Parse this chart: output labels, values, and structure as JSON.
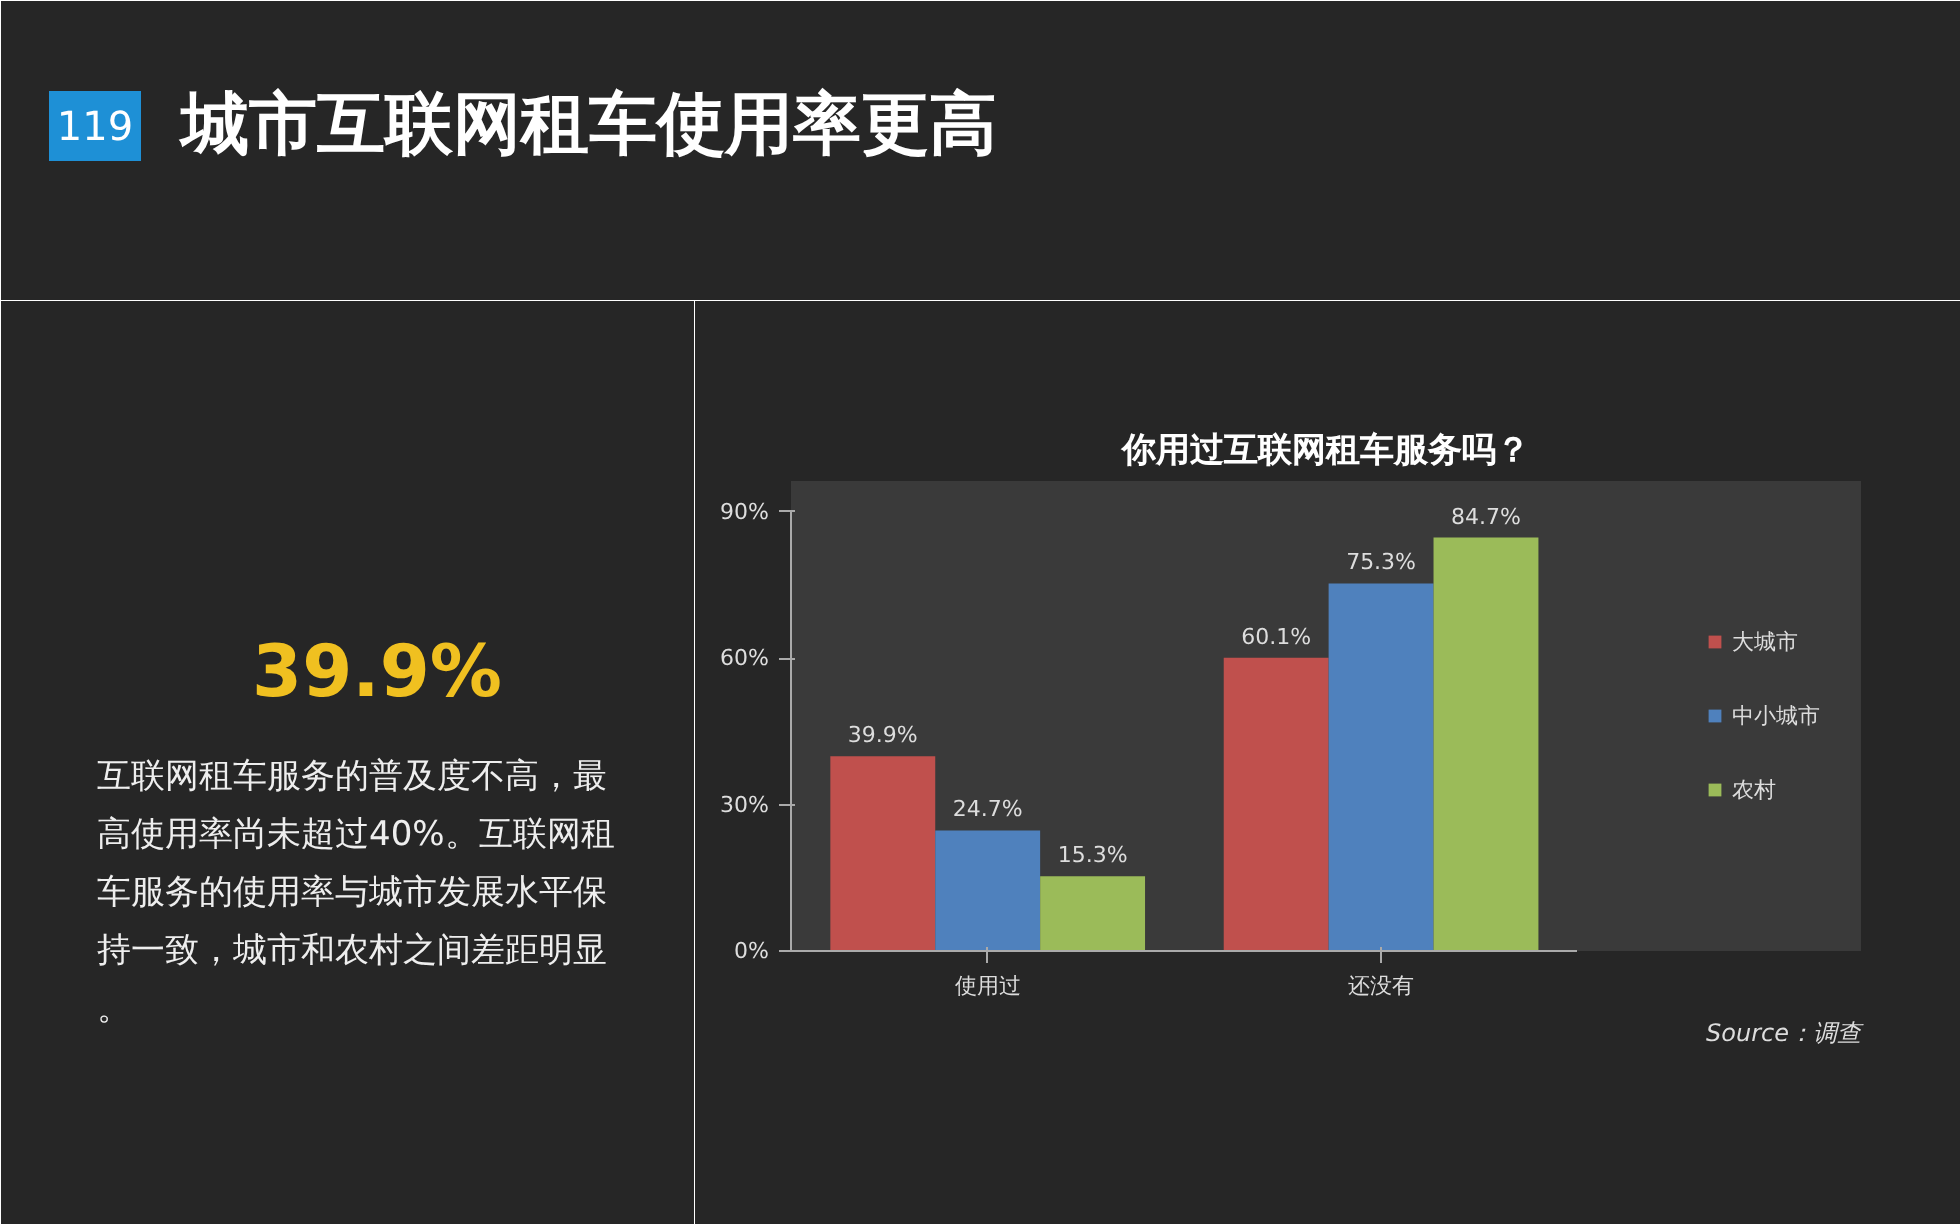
{
  "chart_data": {
    "type": "bar",
    "title": "城市互联网租车使用率更高",
    "subtitle": "你用过互联网租车服务吗？",
    "categories": [
      "使用过",
      "还没有"
    ],
    "series": [
      {
        "name": "大城市",
        "color": "#c0504d",
        "values": [
          39.9,
          60.1
        ]
      },
      {
        "name": "中小城市",
        "color": "#4f81bd",
        "values": [
          24.7,
          75.3
        ]
      },
      {
        "name": "农村",
        "color": "#9bbb59",
        "values": [
          15.3,
          84.7
        ]
      }
    ],
    "value_labels": [
      [
        "39.9%",
        "60.1%"
      ],
      [
        "24.7%",
        "75.3%"
      ],
      [
        "15.3%",
        "84.7%"
      ]
    ],
    "ylim": [
      0,
      90
    ],
    "yticks": [
      {
        "value": 0,
        "label": "0%"
      },
      {
        "value": 30,
        "label": "30%"
      },
      {
        "value": 60,
        "label": "60%"
      },
      {
        "value": 90,
        "label": "90%"
      }
    ],
    "grid": false,
    "legend": "right",
    "annotations": [
      "119",
      "39.9%",
      "互联网租车服务的普及度不高，最高使用率尚未超过40%。互联网租车服务的使用率与城市发展水平保持一致，城市和农村之间差距明显。",
      "Source：调查"
    ]
  }
}
